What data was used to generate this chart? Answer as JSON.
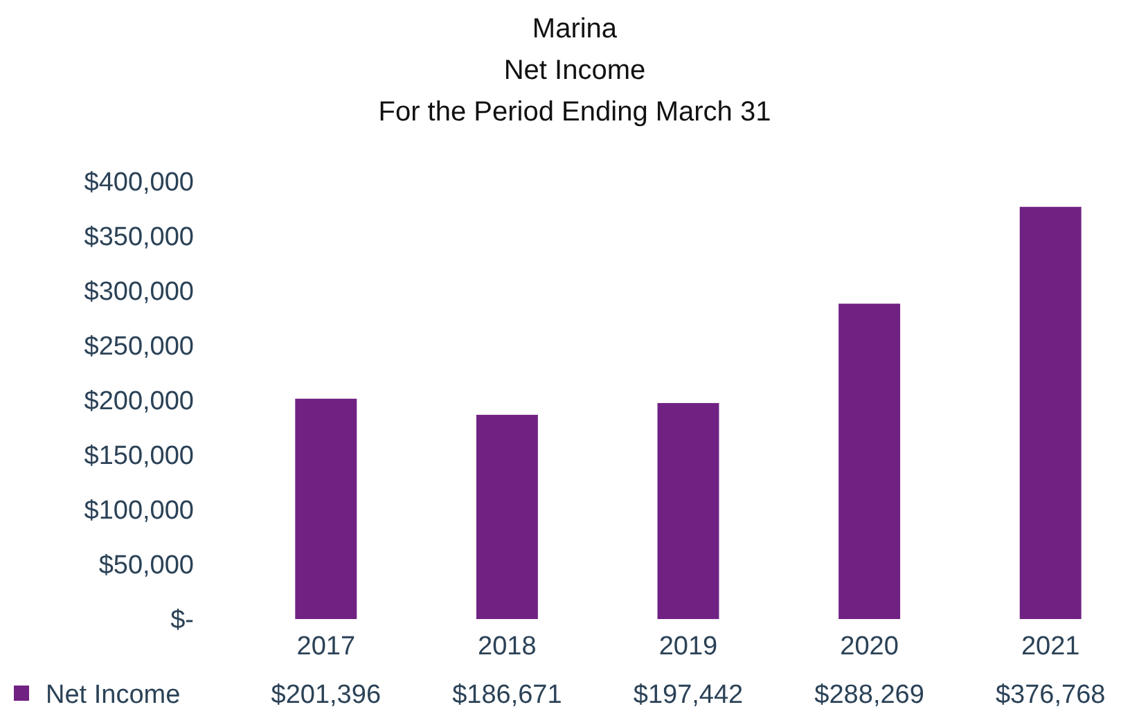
{
  "chart_data": {
    "type": "bar",
    "title": "Marina\nNet Income\nFor the Period Ending March 31",
    "categories": [
      "2017",
      "2018",
      "2019",
      "2020",
      "2021"
    ],
    "series": [
      {
        "name": "Net Income",
        "color": "#702283",
        "values": [
          201396,
          186671,
          197442,
          288269,
          376768
        ],
        "value_labels": [
          "$201,396",
          "$186,671",
          "$197,442",
          "$288,269",
          "$376,768"
        ]
      }
    ],
    "ylim": [
      0,
      400000
    ],
    "yticks": [
      {
        "value": 0,
        "label": "$-"
      },
      {
        "value": 50000,
        "label": "$50,000"
      },
      {
        "value": 100000,
        "label": "$100,000"
      },
      {
        "value": 150000,
        "label": "$150,000"
      },
      {
        "value": 200000,
        "label": "$200,000"
      },
      {
        "value": 250000,
        "label": "$250,000"
      },
      {
        "value": 300000,
        "label": "$300,000"
      },
      {
        "value": 350000,
        "label": "$350,000"
      },
      {
        "value": 400000,
        "label": "$400,000"
      }
    ],
    "grid": false,
    "legend": "bottom"
  }
}
